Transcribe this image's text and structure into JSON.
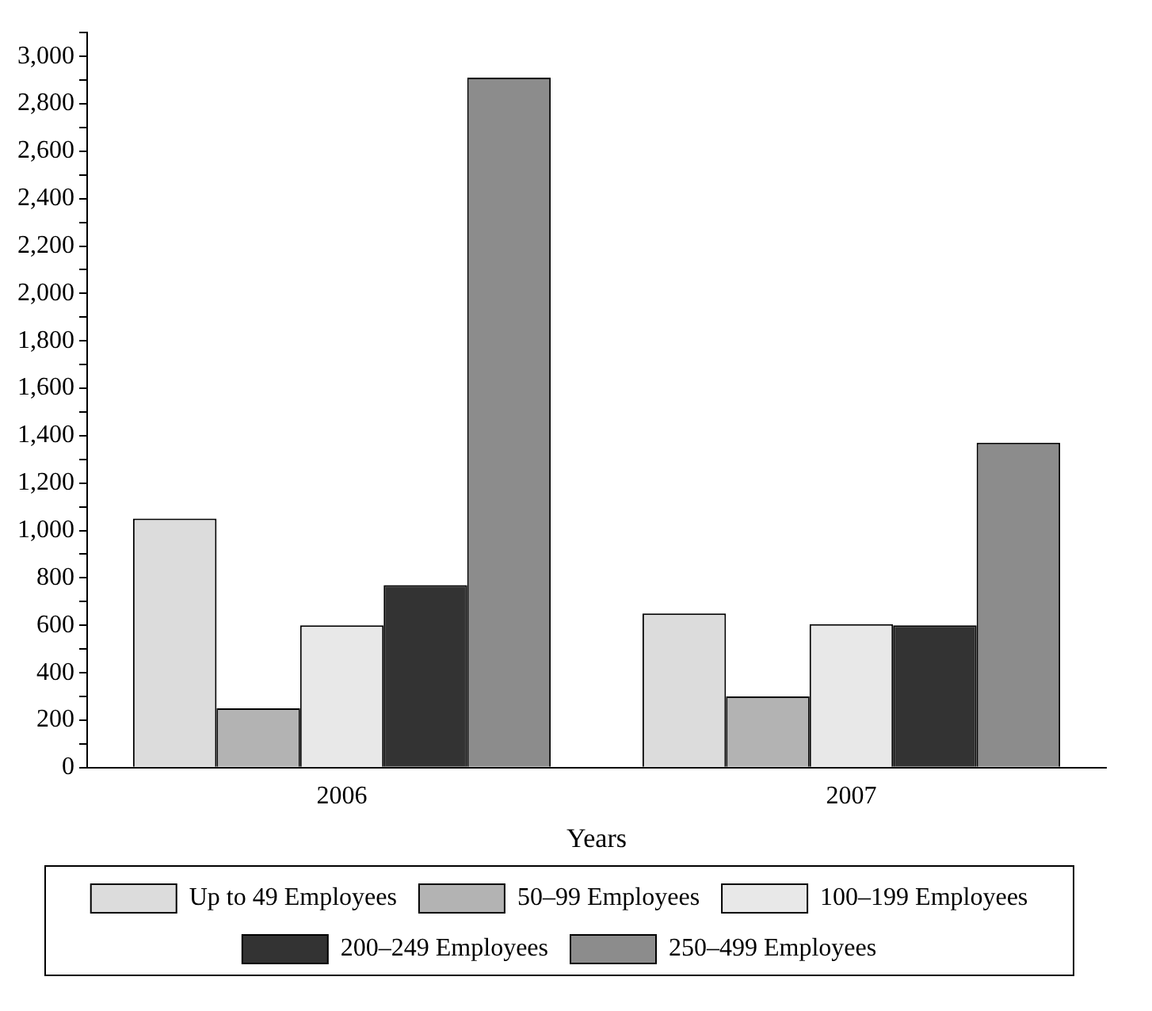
{
  "chart_data": {
    "type": "bar",
    "xlabel": "Years",
    "categories": [
      "2006",
      "2007"
    ],
    "series": [
      {
        "name": "Up to 49 Employees",
        "color": "#dcdcdc",
        "values": [
          1050,
          650
        ]
      },
      {
        "name": "50–99 Employees",
        "color": "#b3b3b3",
        "values": [
          250,
          300
        ]
      },
      {
        "name": "100–199 Employees",
        "color": "#e8e8e8",
        "values": [
          600,
          605
        ]
      },
      {
        "name": "200–249 Employees",
        "color": "#333333",
        "values": [
          770,
          600
        ]
      },
      {
        "name": "250–499 Employees",
        "color": "#8c8c8c",
        "values": [
          2910,
          1370
        ]
      }
    ],
    "ylim": [
      0,
      3100
    ],
    "yticks": [
      0,
      {
        "value": 100,
        "label": null
      },
      200,
      {
        "value": 300,
        "label": null
      },
      400,
      {
        "value": 500,
        "label": null
      },
      600,
      {
        "value": 700,
        "label": null
      },
      800,
      {
        "value": 900,
        "label": null
      },
      {
        "value": 1000,
        "label": "1,000"
      },
      {
        "value": 1100,
        "label": null
      },
      {
        "value": 1200,
        "label": "1,200"
      },
      {
        "value": 1300,
        "label": null
      },
      {
        "value": 1400,
        "label": "1,400"
      },
      {
        "value": 1500,
        "label": null
      },
      {
        "value": 1600,
        "label": "1,600"
      },
      {
        "value": 1700,
        "label": null
      },
      {
        "value": 1800,
        "label": "1,800"
      },
      {
        "value": 1900,
        "label": null
      },
      {
        "value": 2000,
        "label": "2,000"
      },
      {
        "value": 2100,
        "label": null
      },
      {
        "value": 2200,
        "label": "2,200"
      },
      {
        "value": 2300,
        "label": null
      },
      {
        "value": 2400,
        "label": "2,400"
      },
      {
        "value": 2500,
        "label": null
      },
      {
        "value": 2600,
        "label": "2,600"
      },
      {
        "value": 2700,
        "label": null
      },
      {
        "value": 2800,
        "label": "2,800"
      },
      {
        "value": 2900,
        "label": null
      },
      {
        "value": 3000,
        "label": "3,000"
      },
      {
        "value": 3100,
        "label": null
      }
    ],
    "grid": false,
    "legend": "bottom"
  }
}
